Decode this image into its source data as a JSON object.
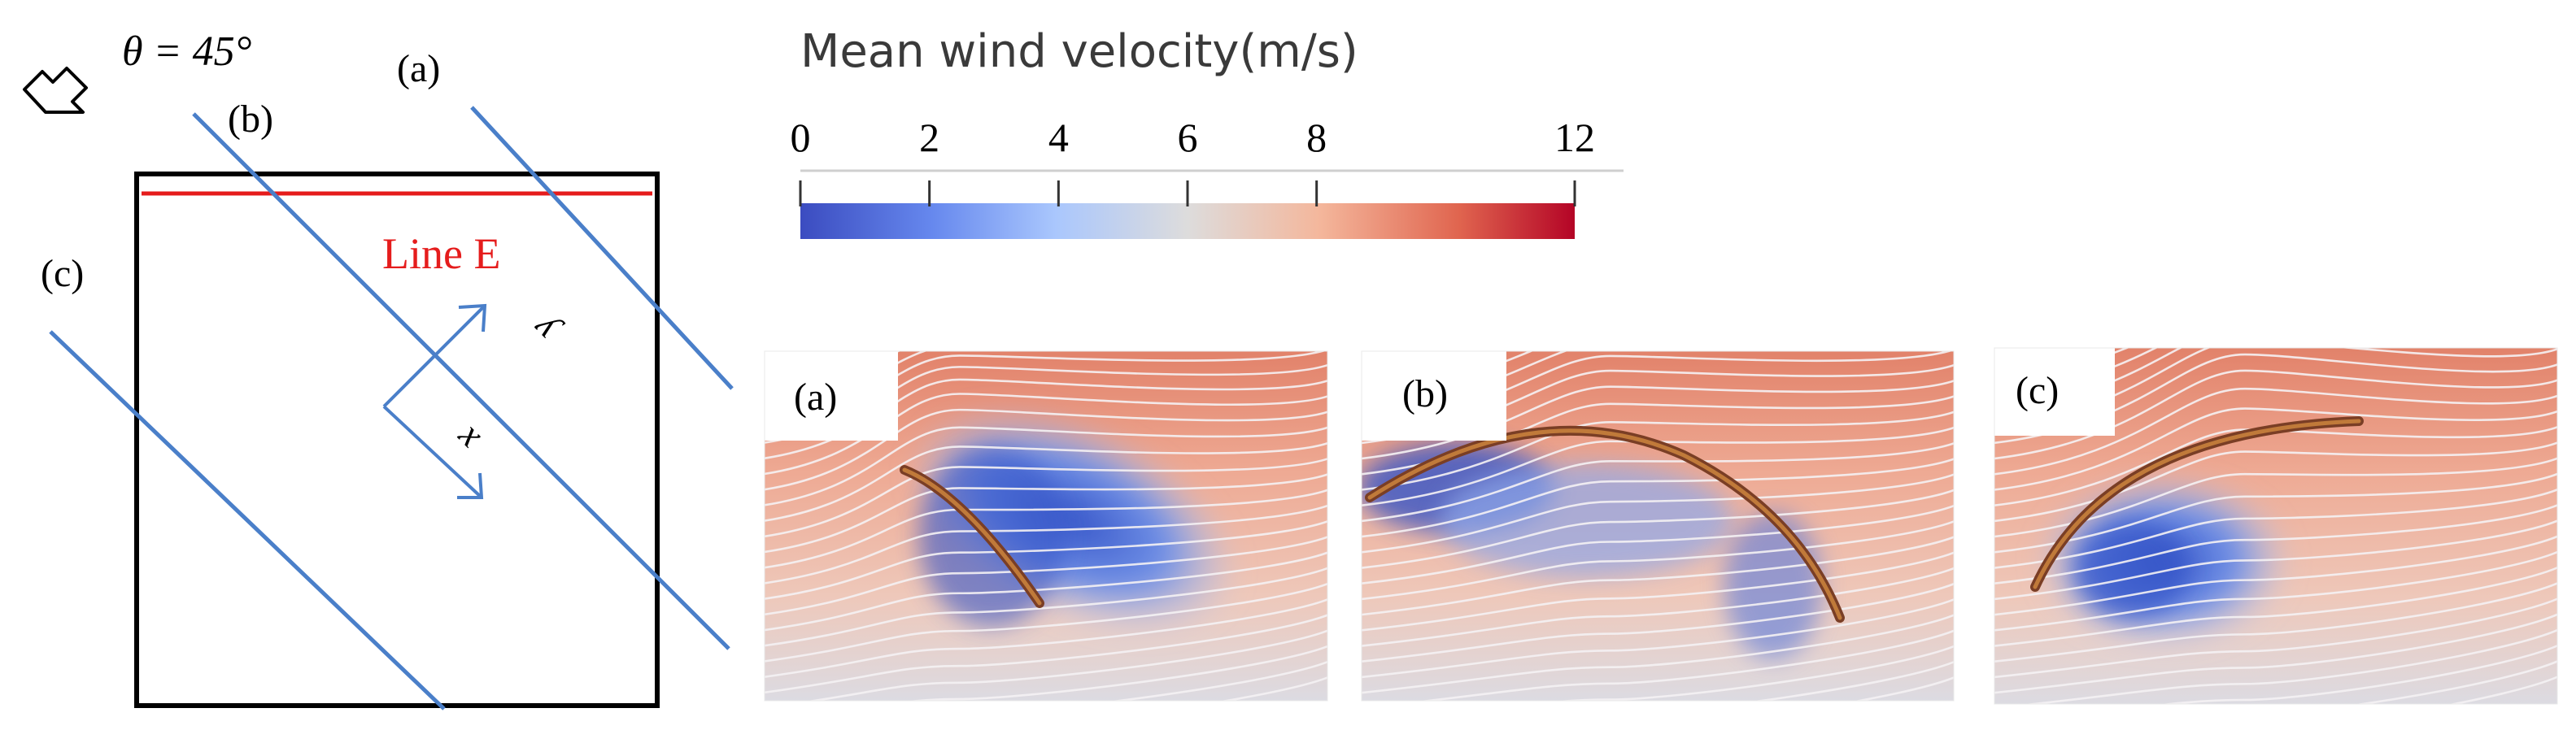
{
  "schematic": {
    "wind_angle_label": "θ = 45°",
    "line_labels": [
      "(a)",
      "(b)",
      "(c)"
    ],
    "line_e_label": "Line E",
    "axis_x_label": "x",
    "axis_y_label": "y",
    "line_color": "#4a7fc9",
    "line_e_color": "#e51c1c"
  },
  "colorbar": {
    "title": "Mean wind velocity(m/s)",
    "tick_labels": [
      "0",
      "2",
      "4",
      "6",
      "8",
      "12"
    ],
    "tick_values": [
      0,
      2,
      4,
      6,
      8,
      12
    ],
    "range": [
      0,
      12
    ],
    "colormap": [
      "#3b4cc0",
      "#8db0fe",
      "#dddcdc",
      "#f4987a",
      "#b40426"
    ]
  },
  "panels": [
    {
      "label": "(a)"
    },
    {
      "label": "(b)"
    },
    {
      "label": "(c)"
    }
  ]
}
